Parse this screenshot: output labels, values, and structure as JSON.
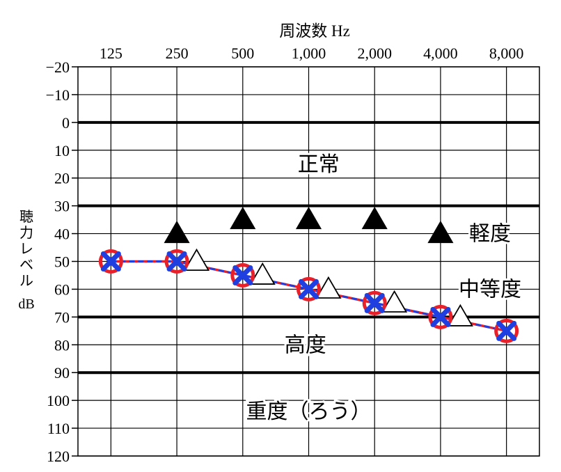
{
  "chart_data": {
    "type": "line",
    "title": "周波数 Hz",
    "xlabel": "周波数 Hz",
    "ylabel_chars": [
      "聴",
      "力",
      "レ",
      "ベ",
      "ル"
    ],
    "ylabel_unit": "dB",
    "x_categories": [
      "125",
      "250",
      "500",
      "1,000",
      "2,000",
      "4,000",
      "8,000"
    ],
    "y_ticks": [
      "−20",
      "−10",
      "0",
      "10",
      "20",
      "30",
      "40",
      "50",
      "60",
      "70",
      "80",
      "90",
      "100",
      "110",
      "120"
    ],
    "ylim": [
      -20,
      120
    ],
    "y_inverted": true,
    "zone_boundaries": [
      0,
      30,
      70,
      90
    ],
    "zones": [
      {
        "label": "正常",
        "x_pos": 3.15,
        "y": 15
      },
      {
        "label": "軽度",
        "x_pos": 5.75,
        "y": 40
      },
      {
        "label": "中等度",
        "x_pos": 5.75,
        "y": 60
      },
      {
        "label": "高度",
        "x_pos": 2.95,
        "y": 80
      },
      {
        "label": "重度（ろう）",
        "x_pos": 3.0,
        "y": 104
      }
    ],
    "series": [
      {
        "marker": "circle",
        "color": "#e8202a",
        "line": "solid",
        "x_pos": [
          0,
          1,
          2,
          3,
          4,
          5,
          6
        ],
        "values": [
          50,
          50,
          55,
          60,
          65,
          70,
          75
        ]
      },
      {
        "marker": "cross",
        "color": "#1f3fe0",
        "line": "dashed",
        "x_pos": [
          0,
          1,
          2,
          3,
          4,
          5,
          6
        ],
        "values": [
          50,
          50,
          55,
          60,
          65,
          70,
          75
        ]
      },
      {
        "marker": "triangle-open",
        "color": "#000000",
        "x_pos": [
          1.3,
          2.3,
          3.3,
          4.3,
          5.3
        ],
        "values": [
          50,
          55,
          60,
          65,
          70
        ]
      },
      {
        "marker": "triangle-filled",
        "color": "#000000",
        "x_pos": [
          1,
          2,
          3,
          4,
          5
        ],
        "values": [
          40,
          35,
          35,
          35,
          40
        ]
      }
    ],
    "grid": true
  }
}
